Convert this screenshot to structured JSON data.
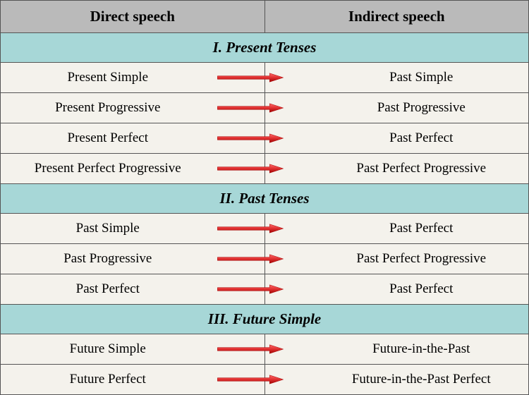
{
  "header": {
    "left": "Direct speech",
    "right": "Indirect speech"
  },
  "colors": {
    "header_bg": "#bababa",
    "section_bg": "#a7d7d7",
    "row_bg": "#f4f2ec",
    "border": "#555555",
    "text": "#000000",
    "arrow_fill": "#e03030",
    "arrow_stroke": "#a00000"
  },
  "typography": {
    "font_family": "Times New Roman",
    "header_fontsize": 21,
    "section_fontsize": 21,
    "cell_fontsize": 19
  },
  "sections": [
    {
      "title": "I. Present Tenses",
      "rows": [
        {
          "direct": "Present Simple",
          "indirect": "Past Simple"
        },
        {
          "direct": "Present Progressive",
          "indirect": "Past Progressive"
        },
        {
          "direct": "Present Perfect",
          "indirect": "Past Perfect"
        },
        {
          "direct": "Present Perfect Progressive",
          "indirect": "Past Perfect Progressive"
        }
      ]
    },
    {
      "title": "II. Past Tenses",
      "rows": [
        {
          "direct": "Past Simple",
          "indirect": "Past Perfect"
        },
        {
          "direct": "Past Progressive",
          "indirect": "Past Perfect Progressive"
        },
        {
          "direct": "Past Perfect",
          "indirect": "Past Perfect"
        }
      ]
    },
    {
      "title": "III. Future Simple",
      "rows": [
        {
          "direct": "Future Simple",
          "indirect": "Future-in-the-Past"
        },
        {
          "direct": "Future Perfect",
          "indirect": "Future-in-the-Past Perfect"
        }
      ]
    }
  ]
}
